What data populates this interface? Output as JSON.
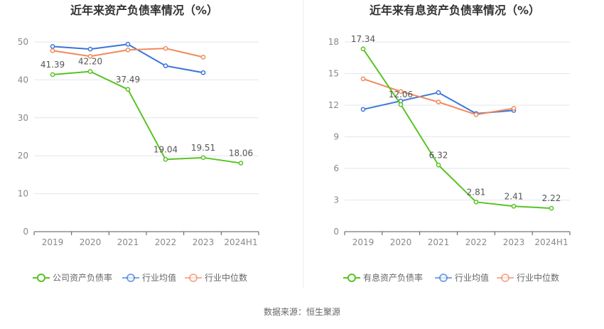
{
  "source": "数据来源：恒生聚源",
  "colors": {
    "company": "#58c322",
    "industry_avg": "#3a76d6",
    "industry_median": "#f08a5d",
    "grid": "#e3e6ee",
    "axis": "#555555",
    "tick_text": "#888888",
    "label_text": "#555555",
    "title_text": "#333333",
    "divider": "#eeeeee"
  },
  "chart_data": [
    {
      "type": "line",
      "title": "近年来资产负债率情况（%）",
      "categories": [
        "2019",
        "2020",
        "2021",
        "2022",
        "2023",
        "2024H1"
      ],
      "ylim": [
        0,
        50
      ],
      "yticks": [
        0,
        10,
        20,
        30,
        40,
        50
      ],
      "series": [
        {
          "name": "公司资产负债率",
          "color_key": "company",
          "values": [
            41.39,
            42.2,
            37.49,
            19.04,
            19.51,
            18.06
          ],
          "labels": [
            "41.39",
            "42.20",
            "37.49",
            "19.04",
            "19.51",
            "18.06"
          ]
        },
        {
          "name": "行业均值",
          "color_key": "industry_avg",
          "values": [
            48.8,
            48.1,
            49.4,
            43.7,
            41.9,
            null
          ]
        },
        {
          "name": "行业中位数",
          "color_key": "industry_median",
          "values": [
            47.7,
            46.2,
            47.9,
            48.3,
            46.0,
            null
          ]
        }
      ]
    },
    {
      "type": "line",
      "title": "近年来有息资产负债率情况（%）",
      "categories": [
        "2019",
        "2020",
        "2021",
        "2022",
        "2023",
        "2024H1"
      ],
      "ylim": [
        0,
        18
      ],
      "yticks": [
        0,
        3,
        6,
        9,
        12,
        15,
        18
      ],
      "series": [
        {
          "name": "有息资产负债率",
          "color_key": "company",
          "values": [
            17.34,
            12.06,
            6.32,
            2.81,
            2.41,
            2.22
          ],
          "labels": [
            "17.34",
            "12.06",
            "6.32",
            "2.81",
            "2.41",
            "2.22"
          ]
        },
        {
          "name": "行业均值",
          "color_key": "industry_avg",
          "values": [
            11.6,
            12.4,
            13.2,
            11.2,
            11.5,
            null
          ]
        },
        {
          "name": "行业中位数",
          "color_key": "industry_median",
          "values": [
            14.5,
            13.3,
            12.3,
            11.1,
            11.7,
            null
          ]
        }
      ]
    }
  ]
}
